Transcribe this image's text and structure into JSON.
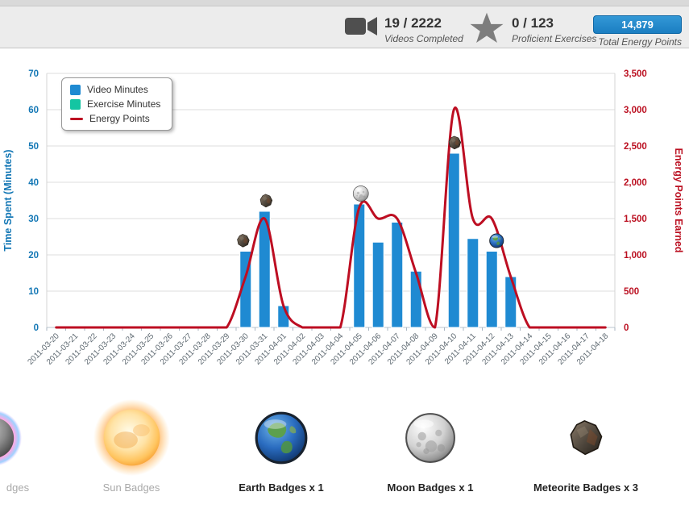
{
  "header": {
    "videos": {
      "count": "19 / 2222",
      "label": "Videos Completed"
    },
    "exercises": {
      "count": "0 / 123",
      "label": "Proficient Exercises"
    },
    "energy": {
      "count": "14,879",
      "label": "Total Energy Points"
    }
  },
  "chart_data": {
    "type": "bar",
    "title": "",
    "categories": [
      "2011-03-20",
      "2011-03-21",
      "2011-03-22",
      "2011-03-23",
      "2011-03-24",
      "2011-03-25",
      "2011-03-26",
      "2011-03-27",
      "2011-03-28",
      "2011-03-29",
      "2011-03-30",
      "2011-03-31",
      "2011-04-01",
      "2011-04-02",
      "2011-04-03",
      "2011-04-04",
      "2011-04-05",
      "2011-04-06",
      "2011-04-07",
      "2011-04-08",
      "2011-04-09",
      "2011-04-10",
      "2011-04-11",
      "2011-04-12",
      "2011-04-13",
      "2011-04-14",
      "2011-04-15",
      "2011-04-16",
      "2011-04-17",
      "2011-04-18"
    ],
    "series": [
      {
        "name": "Video Minutes",
        "type": "column",
        "axis": "left",
        "color": "#1f8ad2",
        "values": [
          0,
          0,
          0,
          0,
          0,
          0,
          0,
          0,
          0,
          0,
          21,
          32,
          6,
          0,
          0,
          0,
          34,
          23.5,
          29,
          15.5,
          0,
          48,
          24.5,
          21,
          14,
          0,
          0,
          0,
          0,
          0
        ]
      },
      {
        "name": "Exercise Minutes",
        "type": "column",
        "axis": "left",
        "color": "#14c5a2",
        "values": [
          0,
          0,
          0,
          0,
          0,
          0,
          0,
          0,
          0,
          0,
          0,
          0,
          0,
          0,
          0,
          0,
          0,
          0,
          0,
          0,
          0,
          0,
          0,
          0,
          0,
          0,
          0,
          0,
          0,
          0
        ]
      },
      {
        "name": "Energy Points",
        "type": "spline",
        "axis": "right",
        "color": "#bd0e22",
        "values": [
          0,
          0,
          0,
          0,
          0,
          0,
          0,
          0,
          0,
          0,
          700,
          1500,
          300,
          0,
          0,
          0,
          1650,
          1500,
          1500,
          750,
          0,
          3000,
          1500,
          1500,
          700,
          0,
          0,
          0,
          0,
          0
        ]
      }
    ],
    "left_axis": {
      "title": "Time Spent (Minutes)",
      "min": 0,
      "max": 70,
      "step": 10,
      "color": "#1377b5"
    },
    "right_axis": {
      "title": "Energy Points Earned",
      "min": 0,
      "max": 3500,
      "step": 500,
      "color": "#bb1021"
    },
    "legend_position": "top-left",
    "grid": "horizontal",
    "badge_markers": [
      {
        "date": "2011-03-30",
        "type": "meteorite"
      },
      {
        "date": "2011-03-31",
        "type": "meteorite"
      },
      {
        "date": "2011-04-05",
        "type": "moon"
      },
      {
        "date": "2011-04-10",
        "type": "meteorite"
      },
      {
        "date": "2011-04-12",
        "type": "earth"
      }
    ]
  },
  "badges_row": {
    "items": [
      {
        "type": "black-hole",
        "label": "dges",
        "earned": false
      },
      {
        "type": "sun",
        "label": "Sun Badges",
        "earned": false
      },
      {
        "type": "earth",
        "label": "Earth Badges x 1",
        "earned": true
      },
      {
        "type": "moon",
        "label": "Moon Badges x 1",
        "earned": true
      },
      {
        "type": "meteorite",
        "label": "Meteorite Badges x 3",
        "earned": true
      }
    ]
  }
}
